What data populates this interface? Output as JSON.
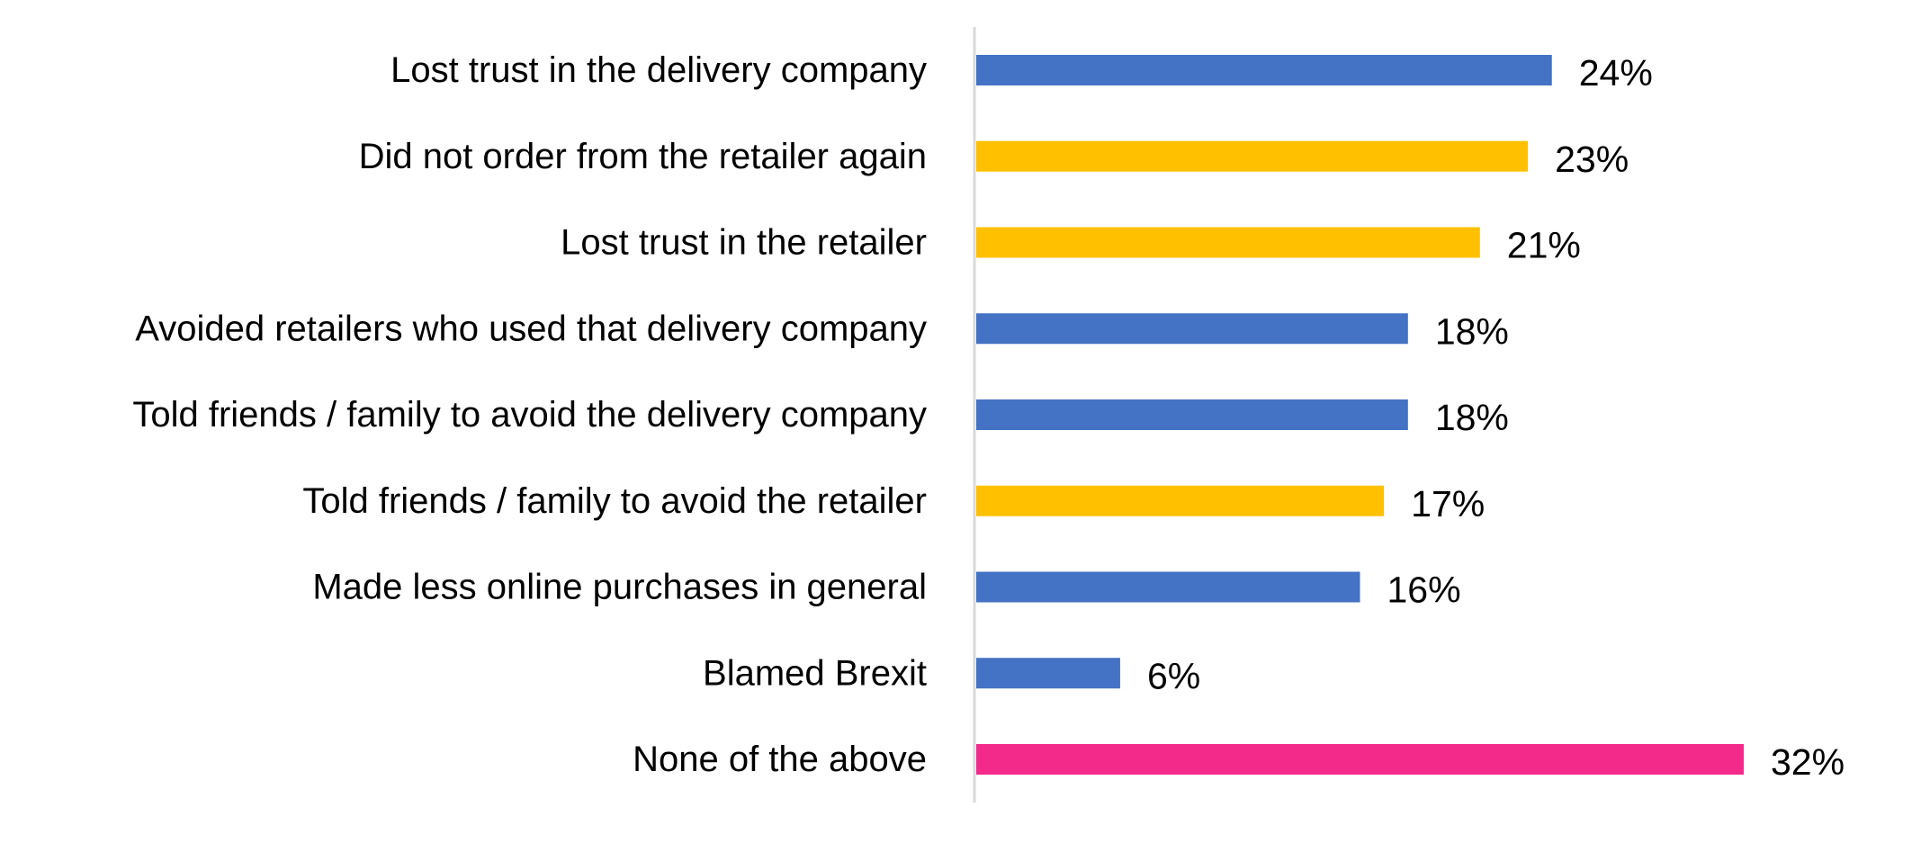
{
  "chart_data": {
    "type": "bar",
    "orientation": "horizontal",
    "categories": [
      "Lost trust in the delivery company",
      "Did not order from the retailer again",
      "Lost trust in the retailer",
      "Avoided retailers who used that delivery company",
      "Told friends / family to avoid the delivery company",
      "Told friends / family to avoid the retailer",
      "Made less online purchases in general",
      "Blamed Brexit",
      "None of the above"
    ],
    "values": [
      24,
      23,
      21,
      18,
      18,
      17,
      16,
      6,
      32
    ],
    "value_labels": [
      "24%",
      "23%",
      "21%",
      "18%",
      "18%",
      "17%",
      "16%",
      "6%",
      "32%"
    ],
    "colors": [
      "#4472C4",
      "#FFC000",
      "#FFC000",
      "#4472C4",
      "#4472C4",
      "#FFC000",
      "#4472C4",
      "#4472C4",
      "#F42A8B"
    ],
    "xlim": [
      0,
      32
    ],
    "grid": false,
    "axis_line_color": "#D9D9D9",
    "title": "",
    "xlabel": "",
    "ylabel": ""
  }
}
